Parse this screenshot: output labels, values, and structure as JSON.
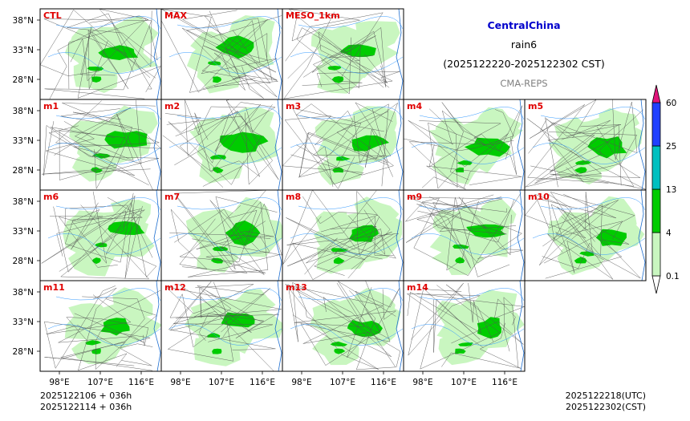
{
  "chart_data": {
    "type": "heatmap",
    "title": "CentralChina",
    "subtitle": "rain6",
    "period": "(2025122220-2025122302 CST)",
    "source": "CMA-REPS",
    "panels": [
      "CTL",
      "MAX",
      "MESO_1km",
      "m1",
      "m2",
      "m3",
      "m4",
      "m5",
      "m6",
      "m7",
      "m8",
      "m9",
      "m10",
      "m11",
      "m12",
      "m13",
      "m14"
    ],
    "lat_ticks": [
      "38°N",
      "33°N",
      "28°N"
    ],
    "lon_ticks": [
      "98°E",
      "107°E",
      "116°E"
    ],
    "colorbar": {
      "levels": [
        "0.1",
        "4",
        "13",
        "25",
        "60"
      ],
      "colors": [
        "#c9f6c0",
        "#00cc00",
        "#00c0c0",
        "#2040ff",
        "#e0147a"
      ]
    },
    "footer": {
      "init_utc": "2025122106  +  036h",
      "init_cst": "2025122114  +  036h",
      "valid_utc": "2025122218(UTC)",
      "valid_cst": "2025122302(CST)"
    }
  }
}
